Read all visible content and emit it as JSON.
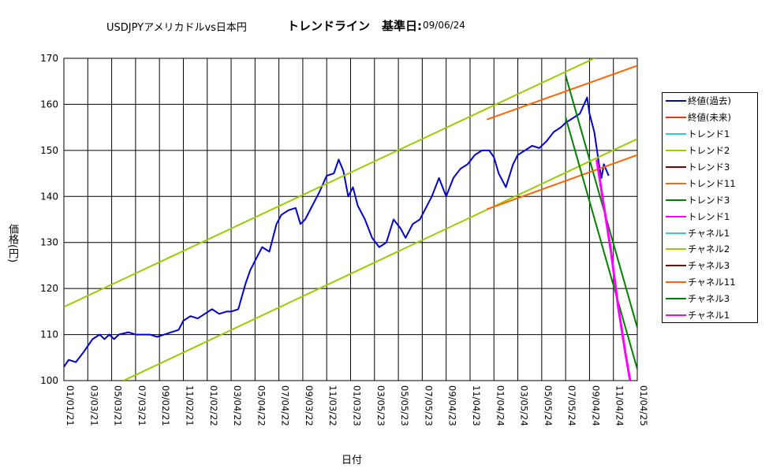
{
  "title": {
    "pair": "USDJPYアメリカドルvs日本円",
    "trend": "トレンドライン　基準日:",
    "date": "09/06/24"
  },
  "axes": {
    "ylabel": "価格(円)",
    "xlabel": "日付"
  },
  "chart_data": {
    "type": "line",
    "ylim": [
      100,
      170
    ],
    "yticks": [
      100,
      110,
      120,
      130,
      140,
      150,
      160,
      170
    ],
    "x_categories": [
      "01/01/21",
      "03/03/21",
      "05/03/21",
      "07/03/21",
      "09/02/21",
      "11/02/21",
      "01/02/22",
      "03/04/22",
      "05/04/22",
      "07/04/22",
      "09/03/22",
      "11/03/22",
      "01/03/23",
      "03/05/23",
      "05/05/23",
      "07/05/23",
      "09/04/23",
      "11/04/23",
      "01/04/24",
      "03/05/24",
      "05/05/24",
      "07/05/24",
      "09/04/24",
      "11/04/24",
      "01/04/25"
    ],
    "grid": true,
    "legend_position": "right",
    "series": [
      {
        "name": "終値(過去)",
        "color": "#0000cc",
        "width": 2,
        "points": [
          [
            0,
            103
          ],
          [
            0.2,
            104.5
          ],
          [
            0.5,
            104
          ],
          [
            0.8,
            106
          ],
          [
            1.2,
            109
          ],
          [
            1.5,
            110
          ],
          [
            1.7,
            109
          ],
          [
            1.9,
            110
          ],
          [
            2.1,
            109
          ],
          [
            2.3,
            110
          ],
          [
            2.7,
            110.5
          ],
          [
            3.0,
            110
          ],
          [
            3.3,
            110
          ],
          [
            3.6,
            110
          ],
          [
            3.9,
            109.5
          ],
          [
            4.2,
            110
          ],
          [
            4.5,
            110.5
          ],
          [
            4.8,
            111
          ],
          [
            5.0,
            113
          ],
          [
            5.3,
            114
          ],
          [
            5.6,
            113.5
          ],
          [
            5.9,
            114.5
          ],
          [
            6.2,
            115.5
          ],
          [
            6.5,
            114.5
          ],
          [
            6.8,
            115
          ],
          [
            7.0,
            115
          ],
          [
            7.3,
            115.5
          ],
          [
            7.6,
            121
          ],
          [
            7.8,
            124
          ],
          [
            8.0,
            126
          ],
          [
            8.3,
            129
          ],
          [
            8.6,
            128
          ],
          [
            8.9,
            134
          ],
          [
            9.1,
            136
          ],
          [
            9.4,
            137
          ],
          [
            9.7,
            137.5
          ],
          [
            9.9,
            134
          ],
          [
            10.1,
            135
          ],
          [
            10.4,
            138
          ],
          [
            10.7,
            141
          ],
          [
            11.0,
            144.5
          ],
          [
            11.3,
            145
          ],
          [
            11.5,
            148
          ],
          [
            11.7,
            145.5
          ],
          [
            11.9,
            140
          ],
          [
            12.1,
            142
          ],
          [
            12.3,
            138
          ],
          [
            12.6,
            135
          ],
          [
            12.9,
            131
          ],
          [
            13.2,
            129
          ],
          [
            13.5,
            130
          ],
          [
            13.8,
            135
          ],
          [
            14.1,
            133
          ],
          [
            14.3,
            131
          ],
          [
            14.6,
            134
          ],
          [
            14.9,
            135
          ],
          [
            15.1,
            137
          ],
          [
            15.4,
            140
          ],
          [
            15.7,
            144
          ],
          [
            16.0,
            140
          ],
          [
            16.3,
            144
          ],
          [
            16.6,
            146
          ],
          [
            16.9,
            147
          ],
          [
            17.2,
            149
          ],
          [
            17.5,
            150
          ],
          [
            17.8,
            150
          ],
          [
            18.0,
            148.5
          ],
          [
            18.2,
            145
          ],
          [
            18.5,
            142
          ],
          [
            18.8,
            147
          ],
          [
            19.0,
            149
          ],
          [
            19.3,
            150
          ],
          [
            19.6,
            151
          ],
          [
            19.9,
            150.5
          ],
          [
            20.2,
            152
          ],
          [
            20.5,
            154
          ],
          [
            20.8,
            155
          ],
          [
            21.0,
            156
          ],
          [
            21.3,
            157
          ],
          [
            21.6,
            158
          ],
          [
            21.9,
            161.5
          ],
          [
            22.0,
            158
          ],
          [
            22.2,
            154
          ],
          [
            22.4,
            147
          ],
          [
            22.5,
            144
          ],
          [
            22.6,
            147
          ],
          [
            22.8,
            144.5
          ]
        ]
      },
      {
        "name": "終値(未来)",
        "color": "#ff3300",
        "width": 2,
        "points": []
      },
      {
        "name": "トレンド1",
        "color": "#33cccc",
        "width": 2,
        "points": []
      },
      {
        "name": "トレンド2",
        "color": "#99cc00",
        "width": 2,
        "points": [
          [
            0,
            116
          ],
          [
            22.2,
            170
          ]
        ]
      },
      {
        "name": "トレンド3",
        "color": "#800000",
        "width": 2,
        "points": []
      },
      {
        "name": "トレンド11",
        "color": "#ff6600",
        "width": 2,
        "points": [
          [
            17.7,
            156.7
          ],
          [
            24,
            168.4
          ]
        ]
      },
      {
        "name": "トレンド3",
        "color": "#008000",
        "width": 2,
        "points": [
          [
            21.0,
            166.3
          ],
          [
            24,
            111.5
          ]
        ]
      },
      {
        "name": "トレンド1",
        "color": "#ff00ff",
        "width": 2,
        "points": []
      },
      {
        "name": "チャネル1",
        "color": "#33cccc",
        "width": 2,
        "points": []
      },
      {
        "name": "チャネル2",
        "color": "#99cc00",
        "width": 2,
        "points": [
          [
            2.5,
            100
          ],
          [
            24,
            152.5
          ]
        ]
      },
      {
        "name": "チャネル3",
        "color": "#800000",
        "width": 2,
        "points": []
      },
      {
        "name": "チャネル11",
        "color": "#ff6600",
        "width": 2,
        "points": [
          [
            17.7,
            137.2
          ],
          [
            24,
            149
          ]
        ]
      },
      {
        "name": "チャネル3",
        "color": "#008000",
        "width": 2,
        "points": [
          [
            21.0,
            157.2
          ],
          [
            24,
            102.5
          ]
        ]
      },
      {
        "name": "チャネル1",
        "color": "#ff00ff",
        "width": 3,
        "points": [
          [
            22.3,
            148
          ],
          [
            22.6,
            138
          ],
          [
            22.9,
            128
          ],
          [
            23.2,
            116
          ],
          [
            23.5,
            106
          ],
          [
            23.7,
            100
          ]
        ]
      }
    ]
  }
}
